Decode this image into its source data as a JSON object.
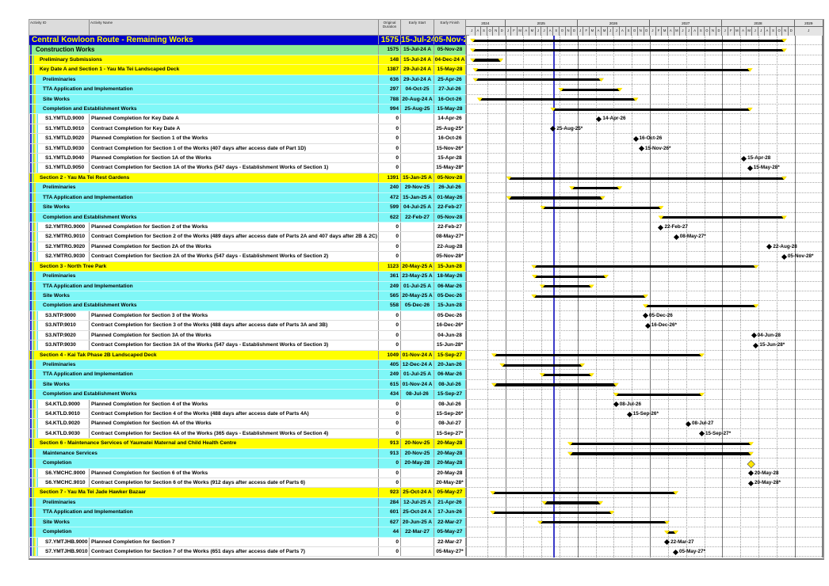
{
  "table": {
    "headers": [
      "Activity ID",
      "Activity Name",
      "Original Duration",
      "Early Start",
      "Early Finish"
    ]
  },
  "timeline": {
    "years": [
      "2024",
      "2025",
      "2026",
      "2027",
      "2028",
      "2029"
    ],
    "visible_range": "Jul-2024 to Jan-2029",
    "month_letters": "JFMAMJJASOND",
    "data_date": "01-Sep-25"
  },
  "colors": {
    "project_bg": "#0000cd",
    "project_text": "#ffff00",
    "wbs_green": "#90ee90",
    "wbs_yellow": "#ffff00",
    "wbs_cyan": "#7ff7f7",
    "bar": "#000000",
    "bar_endpoint": "#ffe600",
    "milestone": "#000000",
    "data_date_line": "#3a3ac8"
  },
  "rows": [
    {
      "t": "project",
      "id": "",
      "name": "Central Kowloon Route - Remaining Works",
      "od": "1575",
      "es": "15-Jul-24 A",
      "ef": "05-Nov-28"
    },
    {
      "t": "green",
      "id": "",
      "name": "Construction Works",
      "od": "1575",
      "es": "15-Jul-24 A",
      "ef": "05-Nov-28"
    },
    {
      "t": "yellow",
      "id": "",
      "name": "Preliminary Submissions",
      "od": "148",
      "es": "15-Jul-24 A",
      "ef": "04-Dec-24 A"
    },
    {
      "t": "yellow",
      "id": "",
      "name": "Key Date A and Section 1 - Yau Ma Tei Landscaped Deck",
      "od": "1387",
      "es": "29-Jul-24 A",
      "ef": "15-May-28"
    },
    {
      "t": "cyan",
      "id": "",
      "name": "Preliminaries",
      "od": "636",
      "es": "29-Jul-24 A",
      "ef": "25-Apr-26"
    },
    {
      "t": "cyan",
      "id": "",
      "name": "TTA Application and Implementation",
      "od": "297",
      "es": "04-Oct-25",
      "ef": "27-Jul-26"
    },
    {
      "t": "cyan",
      "id": "",
      "name": "Site Works",
      "od": "788",
      "es": "20-Aug-24 A",
      "ef": "16-Oct-26"
    },
    {
      "t": "cyan",
      "id": "",
      "name": "Completion and Establishment Works",
      "od": "994",
      "es": "25-Aug-25",
      "ef": "15-May-28"
    },
    {
      "t": "ms",
      "id": "S1.YMTLD.9000",
      "name": "Planned Completion for Key Date A",
      "od": "0",
      "es": "",
      "ef": "14-Apr-26"
    },
    {
      "t": "ms",
      "id": "S1.YMTLD.9010",
      "name": "Contract Completion for Key Date A",
      "od": "0",
      "es": "",
      "ef": "25-Aug-25*"
    },
    {
      "t": "ms",
      "id": "S1.YMTLD.9020",
      "name": "Planned Completion for Section 1 of the Works",
      "od": "0",
      "es": "",
      "ef": "16-Oct-26"
    },
    {
      "t": "ms",
      "id": "S1.YMTLD.9030",
      "name": "Contract Completion for Section 1 of the Works (407 days after access date of Part 1D)",
      "od": "0",
      "es": "",
      "ef": "15-Nov-26*"
    },
    {
      "t": "ms",
      "id": "S1.YMTLD.9040",
      "name": "Planned Completion for Section 1A of the Works",
      "od": "0",
      "es": "",
      "ef": "15-Apr-28"
    },
    {
      "t": "ms",
      "id": "S1.YMTLD.9050",
      "name": "Contract Completion for Section 1A of the Works (547 days - Establishment Works of Section 1)",
      "od": "0",
      "es": "",
      "ef": "15-May-28*"
    },
    {
      "t": "yellow",
      "id": "",
      "name": "Section 2 - Yau Ma Tei Rest Gardens",
      "od": "1391",
      "es": "15-Jan-25 A",
      "ef": "05-Nov-28"
    },
    {
      "t": "cyan",
      "id": "",
      "name": "Preliminaries",
      "od": "240",
      "es": "29-Nov-25",
      "ef": "26-Jul-26"
    },
    {
      "t": "cyan",
      "id": "",
      "name": "TTA Application and Implementation",
      "od": "472",
      "es": "15-Jan-25 A",
      "ef": "01-May-26"
    },
    {
      "t": "cyan",
      "id": "",
      "name": "Site Works",
      "od": "599",
      "es": "04-Jul-25 A",
      "ef": "22-Feb-27"
    },
    {
      "t": "cyan",
      "id": "",
      "name": "Completion and Establishment Works",
      "od": "622",
      "es": "22-Feb-27",
      "ef": "05-Nov-28"
    },
    {
      "t": "ms",
      "id": "S2.YMTRG.9000",
      "name": "Planned Completion for Section 2 of the Works",
      "od": "0",
      "es": "",
      "ef": "22-Feb-27"
    },
    {
      "t": "ms",
      "id": "S2.YMTRG.9010",
      "name": "Contract Completion for Section 2 of the Works (489 days after access date of Parts 2A and 407 days after 2B & 2C)",
      "od": "0",
      "es": "",
      "ef": "08-May-27*"
    },
    {
      "t": "ms",
      "id": "S2.YMTRG.9020",
      "name": "Planned Completion for Section 2A of the Works",
      "od": "0",
      "es": "",
      "ef": "22-Aug-28"
    },
    {
      "t": "ms",
      "id": "S2.YMTRG.9030",
      "name": "Contract Completion for Section 2A of the Works (547 days - Establishment Works of Section 2)",
      "od": "0",
      "es": "",
      "ef": "05-Nov-28*"
    },
    {
      "t": "yellow",
      "id": "",
      "name": "Section 3 - North Tree Park",
      "od": "1123",
      "es": "20-May-25 A",
      "ef": "15-Jun-28"
    },
    {
      "t": "cyan",
      "id": "",
      "name": "Preliminaries",
      "od": "361",
      "es": "23-May-25 A",
      "ef": "18-May-26"
    },
    {
      "t": "cyan",
      "id": "",
      "name": "TTA Application and Implementation",
      "od": "249",
      "es": "01-Jul-25 A",
      "ef": "06-Mar-26"
    },
    {
      "t": "cyan",
      "id": "",
      "name": "Site Works",
      "od": "565",
      "es": "20-May-25 A",
      "ef": "05-Dec-26"
    },
    {
      "t": "cyan",
      "id": "",
      "name": "Completion and Establishment Works",
      "od": "558",
      "es": "05-Dec-26",
      "ef": "15-Jun-28"
    },
    {
      "t": "ms",
      "id": "S3.NTP.9000",
      "name": "Planned Completion for Section 3 of the Works",
      "od": "0",
      "es": "",
      "ef": "05-Dec-26"
    },
    {
      "t": "ms",
      "id": "S3.NTP.9010",
      "name": "Contract Completion for Section 3 of the Works (488 days after access date of Parts 3A and 3B)",
      "od": "0",
      "es": "",
      "ef": "16-Dec-26*"
    },
    {
      "t": "ms",
      "id": "S3.NTP.9020",
      "name": "Planned Completion for Section 3A of the Works",
      "od": "0",
      "es": "",
      "ef": "04-Jun-28"
    },
    {
      "t": "ms",
      "id": "S3.NTP.9030",
      "name": "Contract Completion for Section 3A of the Works (547 days - Establishment Works of Section 3)",
      "od": "0",
      "es": "",
      "ef": "15-Jun-28*"
    },
    {
      "t": "yellow",
      "id": "",
      "name": "Section 4 - Kai Tak Phase 2B Landscaped Deck",
      "od": "1049",
      "es": "01-Nov-24 A",
      "ef": "15-Sep-27"
    },
    {
      "t": "cyan",
      "id": "",
      "name": "Preliminaries",
      "od": "405",
      "es": "12-Dec-24 A",
      "ef": "20-Jan-26"
    },
    {
      "t": "cyan",
      "id": "",
      "name": "TTA Application and Implementation",
      "od": "249",
      "es": "01-Jul-25 A",
      "ef": "06-Mar-26"
    },
    {
      "t": "cyan",
      "id": "",
      "name": "Site Works",
      "od": "615",
      "es": "01-Nov-24 A",
      "ef": "08-Jul-26"
    },
    {
      "t": "cyan",
      "id": "",
      "name": "Completion and Establishment Works",
      "od": "434",
      "es": "08-Jul-26",
      "ef": "15-Sep-27"
    },
    {
      "t": "ms",
      "id": "S4.KTLD.9000",
      "name": "Planned Completion for Section 4 of the Works",
      "od": "0",
      "es": "",
      "ef": "08-Jul-26"
    },
    {
      "t": "ms",
      "id": "S4.KTLD.9010",
      "name": "Contract Completion for Section 4 of the Works (488 days after access date of Parts 4A)",
      "od": "0",
      "es": "",
      "ef": "15-Sep-26*"
    },
    {
      "t": "ms",
      "id": "S4.KTLD.9020",
      "name": "Planned Completion for Section 4A of the Works",
      "od": "0",
      "es": "",
      "ef": "08-Jul-27"
    },
    {
      "t": "ms",
      "id": "S4.KTLD.9030",
      "name": "Contract Completion for Section 4A of the Works (365 days - Establishment Works of Section 4)",
      "od": "0",
      "es": "",
      "ef": "15-Sep-27*"
    },
    {
      "t": "yellow",
      "id": "",
      "name": "Section 6 - Maintenance Services of Yaumatei Maternal and Child Health Centre",
      "od": "913",
      "es": "20-Nov-25",
      "ef": "20-May-28"
    },
    {
      "t": "cyan",
      "id": "",
      "name": "Maintenance Services",
      "od": "913",
      "es": "20-Nov-25",
      "ef": "20-May-28"
    },
    {
      "t": "cyan",
      "id": "",
      "name": "Completion",
      "od": "0",
      "es": "20-May-28",
      "ef": "20-May-28"
    },
    {
      "t": "ms",
      "id": "S6.YMCHC.9000",
      "name": "Planned Completion for Section 6 of the Works",
      "od": "0",
      "es": "",
      "ef": "20-May-28"
    },
    {
      "t": "ms",
      "id": "S6.YMCHC.9010",
      "name": "Contract Completion for Section 6 of the Works (912 days after access date of Parts 6)",
      "od": "0",
      "es": "",
      "ef": "20-May-28*"
    },
    {
      "t": "yellow",
      "id": "",
      "name": "Section 7 - Yau Ma Tei Jade Hawker Bazaar",
      "od": "923",
      "es": "25-Oct-24 A",
      "ef": "05-May-27"
    },
    {
      "t": "cyan",
      "id": "",
      "name": "Preliminaries",
      "od": "284",
      "es": "12-Jul-25 A",
      "ef": "21-Apr-26"
    },
    {
      "t": "cyan",
      "id": "",
      "name": "TTA Application and Implementation",
      "od": "601",
      "es": "25-Oct-24 A",
      "ef": "17-Jun-26"
    },
    {
      "t": "cyan",
      "id": "",
      "name": "Site Works",
      "od": "627",
      "es": "20-Jun-25 A",
      "ef": "22-Mar-27"
    },
    {
      "t": "cyan",
      "id": "",
      "name": "Completion",
      "od": "44",
      "es": "22-Mar-27",
      "ef": "05-May-27"
    },
    {
      "t": "ms",
      "id": "S7.YMTJHB.9000",
      "name": "Planned Completion for Section 7",
      "od": "0",
      "es": "",
      "ef": "22-Mar-27"
    },
    {
      "t": "ms",
      "id": "S7.YMTJHB.9010",
      "name": "Contract Completion for Section 7 of the Works (651 days after access date of Parts 7)",
      "od": "0",
      "es": "",
      "ef": "05-May-27*"
    }
  ]
}
